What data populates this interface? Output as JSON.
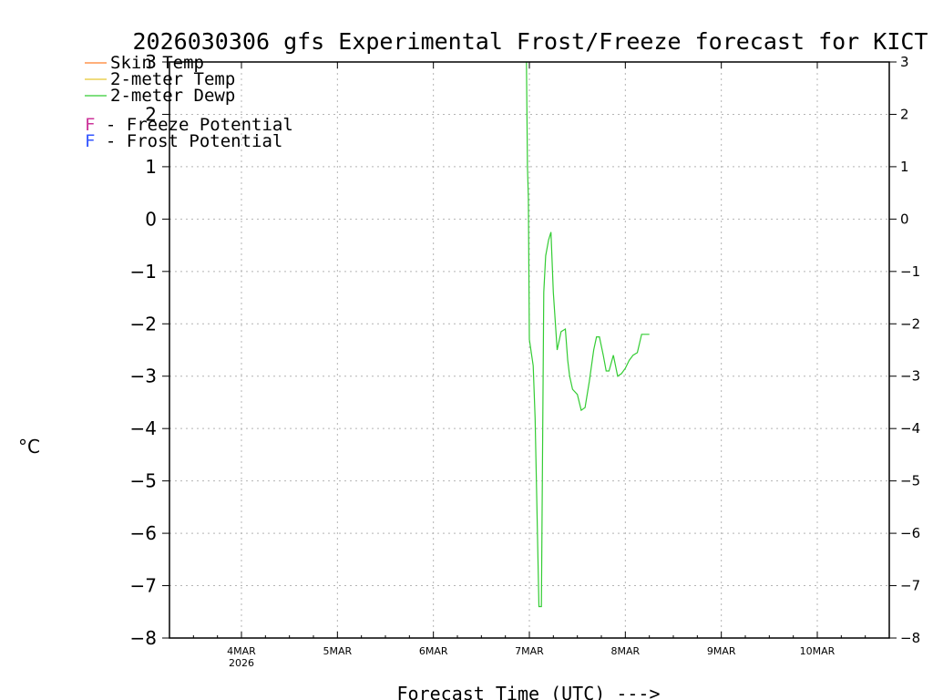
{
  "chart_data": {
    "type": "line",
    "title": "2026030306 gfs Experimental Frost/Freeze forecast for KICT",
    "ylabel": "°C",
    "xlabel": "Forecast Time (UTC) --->",
    "ylim": [
      -8,
      3
    ],
    "xlim": [
      3.25,
      10.75
    ],
    "yticks": [
      3,
      2,
      1,
      0,
      -1,
      -2,
      -3,
      -4,
      -5,
      -6,
      -7,
      -8
    ],
    "xticks": [
      {
        "x": 4,
        "label": "4MAR",
        "sublabel": "2026"
      },
      {
        "x": 5,
        "label": "5MAR",
        "sublabel": ""
      },
      {
        "x": 6,
        "label": "6MAR",
        "sublabel": ""
      },
      {
        "x": 7,
        "label": "7MAR",
        "sublabel": ""
      },
      {
        "x": 8,
        "label": "8MAR",
        "sublabel": ""
      },
      {
        "x": 9,
        "label": "9MAR",
        "sublabel": ""
      },
      {
        "x": 10,
        "label": "10MAR",
        "sublabel": ""
      }
    ],
    "grid": true,
    "legend": [
      {
        "dash": "—",
        "label": "Skin Temp",
        "color": "#ff7f2a"
      },
      {
        "dash": "—",
        "label": "2-meter Temp",
        "color": "#e6c830"
      },
      {
        "dash": "—",
        "label": "2-meter Dewp",
        "color": "#33cc33"
      }
    ],
    "potential_legend": [
      {
        "symbol": "F",
        "label": " - Freeze Potential",
        "color": "#cc3399"
      },
      {
        "symbol": "F",
        "label": " - Frost Potential",
        "color": "#3355ff"
      }
    ],
    "series": [
      {
        "name": "Skin Temp",
        "color": "#ff7f2a",
        "x": [],
        "y": []
      },
      {
        "name": "2-meter Temp",
        "color": "#e6c830",
        "x": [],
        "y": []
      },
      {
        "name": "2-meter Dewp",
        "color": "#33cc33",
        "x": [
          6.97,
          6.98,
          6.99,
          7.0,
          7.04,
          7.06,
          7.1,
          7.125,
          7.15,
          7.17,
          7.2,
          7.225,
          7.25,
          7.29,
          7.33,
          7.375,
          7.4,
          7.42,
          7.45,
          7.5,
          7.54,
          7.58,
          7.625,
          7.67,
          7.7,
          7.73,
          7.77,
          7.8,
          7.83,
          7.875,
          7.92,
          7.96,
          8.0,
          8.04,
          8.08,
          8.125,
          8.17,
          8.21,
          8.25
        ],
        "y": [
          3.0,
          1.0,
          0.4,
          -2.3,
          -2.8,
          -3.8,
          -7.4,
          -7.4,
          -1.4,
          -0.7,
          -0.4,
          -0.25,
          -1.4,
          -2.5,
          -2.15,
          -2.1,
          -2.7,
          -3.0,
          -3.25,
          -3.35,
          -3.65,
          -3.6,
          -3.1,
          -2.5,
          -2.25,
          -2.25,
          -2.6,
          -2.9,
          -2.9,
          -2.6,
          -3.0,
          -2.95,
          -2.85,
          -2.7,
          -2.6,
          -2.55,
          -2.2,
          -2.2,
          -2.2
        ]
      }
    ]
  }
}
